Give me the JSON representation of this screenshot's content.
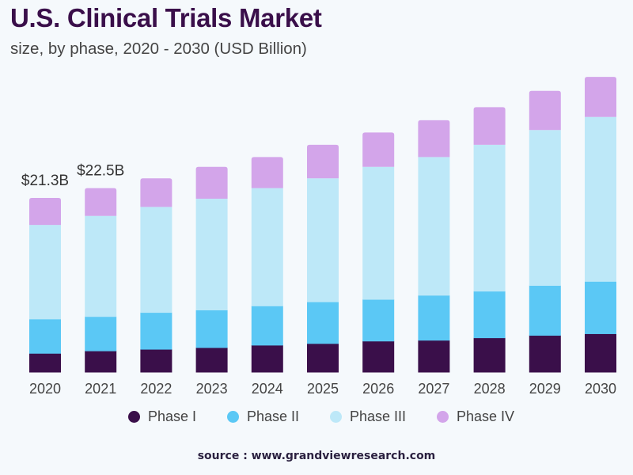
{
  "header": {
    "title": "U.S. Clinical Trials Market",
    "subtitle": "size, by phase, 2020 - 2030 (USD Billion)"
  },
  "source": "source : www.grandviewresearch.com",
  "colors": {
    "phase_i": "#3a0f4a",
    "phase_ii": "#5bc8f5",
    "phase_iii": "#bde8f8",
    "phase_iv": "#d3a5ea",
    "background": "#f5f9fc"
  },
  "chart_data": {
    "type": "bar",
    "stacked": true,
    "title": "U.S. Clinical Trials Market",
    "subtitle": "size, by phase, 2020 - 2030 (USD Billion)",
    "xlabel": "",
    "ylabel": "",
    "ylim": [
      0,
      37
    ],
    "grid": false,
    "legend_position": "bottom",
    "categories": [
      "2020",
      "2021",
      "2022",
      "2023",
      "2024",
      "2025",
      "2026",
      "2027",
      "2028",
      "2029",
      "2030"
    ],
    "series": [
      {
        "name": "Phase I",
        "color": "#3a0f4a",
        "values": [
          2.3,
          2.6,
          2.8,
          3.0,
          3.3,
          3.5,
          3.8,
          3.9,
          4.2,
          4.5,
          4.7
        ]
      },
      {
        "name": "Phase II",
        "color": "#5bc8f5",
        "values": [
          4.2,
          4.2,
          4.5,
          4.6,
          4.8,
          5.1,
          5.1,
          5.5,
          5.7,
          6.1,
          6.4
        ]
      },
      {
        "name": "Phase III",
        "color": "#bde8f8",
        "values": [
          11.5,
          12.3,
          12.9,
          13.6,
          14.4,
          15.1,
          16.2,
          16.9,
          17.9,
          19.0,
          20.1
        ]
      },
      {
        "name": "Phase IV",
        "color": "#d3a5ea",
        "values": [
          3.3,
          3.4,
          3.5,
          3.9,
          3.8,
          4.1,
          4.2,
          4.5,
          4.6,
          4.8,
          4.9
        ]
      }
    ],
    "annotations": [
      {
        "category": "2020",
        "text": "$21.3B"
      },
      {
        "category": "2021",
        "text": "$22.5B"
      }
    ]
  }
}
